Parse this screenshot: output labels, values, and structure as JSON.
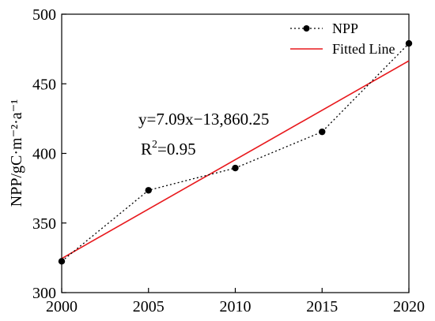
{
  "chart_data": {
    "type": "line",
    "ylabel": "NPP/gC·m⁻²·a⁻¹",
    "xlim": [
      2000,
      2020
    ],
    "ylim": [
      300,
      500
    ],
    "xticks": [
      2000,
      2005,
      2010,
      2015,
      2020
    ],
    "yticks": [
      300,
      350,
      400,
      450,
      500
    ],
    "grid": false,
    "legend_position": "top-right",
    "series": [
      {
        "name": "NPP",
        "style": "dotted-with-markers",
        "color": "#000000",
        "x": [
          2000,
          2005,
          2010,
          2015,
          2020
        ],
        "y": [
          322.5,
          373.5,
          389.5,
          415.5,
          479
        ]
      },
      {
        "name": "Fitted Line",
        "style": "solid",
        "color": "#e8191d",
        "x": [
          2000,
          2020
        ],
        "y": [
          324.5,
          466.5
        ]
      }
    ],
    "annotations": {
      "equation": "y=7.09x−13,860.25",
      "r2_label": "R",
      "r2_sup": "2",
      "r2_value": "=0.95"
    }
  }
}
